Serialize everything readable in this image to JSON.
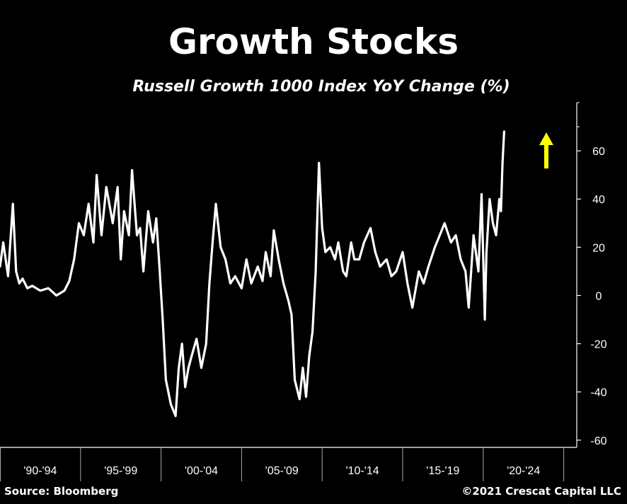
{
  "chart_data": {
    "type": "line",
    "title": "Growth Stocks",
    "subtitle": "Russell Growth 1000 Index YoY Change (%)",
    "xlabel": "",
    "ylabel": "",
    "ylim": [
      -63,
      80
    ],
    "xlim": [
      1990.0,
      2025.5
    ],
    "y_ticks": [
      60,
      40,
      20,
      0,
      -20,
      -40,
      -60
    ],
    "y_tick_labels": [
      "60",
      "40",
      "20",
      "0",
      "-20",
      "-40",
      "-60"
    ],
    "x_categories": [
      "'90-'94",
      "'95-'99",
      "'00-'04",
      "'05-'09",
      "'10-'14",
      "'15-'19",
      "'20-'24"
    ],
    "x_category_bounds": [
      1990,
      1995,
      2000,
      2005,
      2010,
      2015,
      2020,
      2025
    ],
    "grid": false,
    "line_color": "#ffffff",
    "annotation": {
      "type": "arrow",
      "direction": "up",
      "color": "#ffff00"
    },
    "series": [
      {
        "x": [
          1990.0,
          1990.2,
          1990.5,
          1990.8,
          1991.0,
          1991.2,
          1991.4,
          1991.7,
          1992.0,
          1992.5,
          1993.0,
          1993.5,
          1994.0,
          1994.3,
          1994.6,
          1994.9,
          1995.2,
          1995.5,
          1995.8,
          1996.0,
          1996.3,
          1996.6,
          1997.0,
          1997.3,
          1997.5,
          1997.7,
          1998.0,
          1998.2,
          1998.5,
          1998.7,
          1998.9,
          1999.2,
          1999.5,
          1999.7,
          1999.9,
          2000.1,
          2000.3,
          2000.6,
          2000.9,
          2001.1,
          2001.3,
          2001.5,
          2001.7,
          2001.9,
          2002.2,
          2002.5,
          2002.8,
          2003.0,
          2003.2,
          2003.4,
          2003.7,
          2004.0,
          2004.3,
          2004.6,
          2005.0,
          2005.3,
          2005.6,
          2006.0,
          2006.3,
          2006.5,
          2006.8,
          2007.0,
          2007.3,
          2007.6,
          2007.9,
          2008.1,
          2008.3,
          2008.6,
          2008.8,
          2009.0,
          2009.2,
          2009.4,
          2009.6,
          2009.8,
          2010.0,
          2010.2,
          2010.5,
          2010.8,
          2011.0,
          2011.3,
          2011.5,
          2011.8,
          2012.0,
          2012.3,
          2012.6,
          2013.0,
          2013.3,
          2013.6,
          2014.0,
          2014.3,
          2014.6,
          2015.0,
          2015.3,
          2015.6,
          2016.0,
          2016.3,
          2016.6,
          2017.0,
          2017.3,
          2017.6,
          2018.0,
          2018.3,
          2018.6,
          2018.9,
          2019.1,
          2019.4,
          2019.7,
          2019.9,
          2020.1,
          2020.2,
          2020.4,
          2020.6,
          2020.8,
          2021.0,
          2021.1,
          2021.2,
          2021.3
        ],
        "values": [
          12,
          22,
          8,
          38,
          10,
          5,
          7,
          3,
          4,
          2,
          3,
          0,
          2,
          6,
          15,
          30,
          25,
          38,
          22,
          50,
          25,
          45,
          30,
          45,
          15,
          35,
          25,
          52,
          25,
          28,
          10,
          35,
          22,
          32,
          12,
          -10,
          -35,
          -45,
          -50,
          -30,
          -20,
          -38,
          -30,
          -25,
          -18,
          -30,
          -20,
          5,
          22,
          38,
          20,
          15,
          5,
          8,
          3,
          15,
          5,
          12,
          6,
          18,
          8,
          27,
          15,
          5,
          -2,
          -8,
          -35,
          -43,
          -30,
          -42,
          -25,
          -15,
          10,
          55,
          28,
          18,
          20,
          15,
          22,
          10,
          8,
          22,
          15,
          15,
          22,
          28,
          18,
          12,
          15,
          8,
          10,
          18,
          5,
          -5,
          10,
          5,
          12,
          20,
          25,
          30,
          22,
          25,
          15,
          10,
          -5,
          25,
          10,
          42,
          -10,
          18,
          40,
          30,
          25,
          40,
          35,
          55,
          68
        ]
      }
    ]
  },
  "footer": {
    "source": "Source: Bloomberg",
    "copyright": "©2021 Crescat Capital LLC"
  }
}
